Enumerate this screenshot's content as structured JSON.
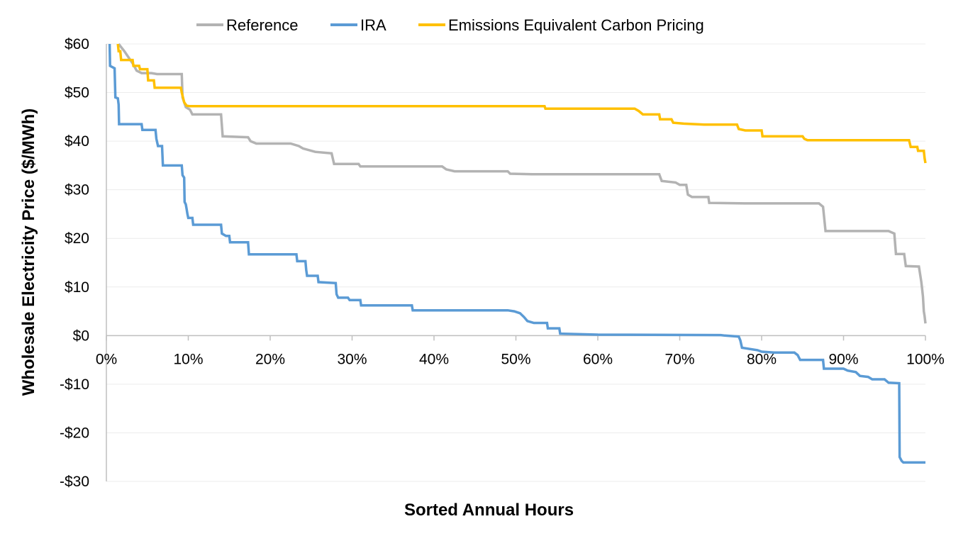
{
  "chart_data": {
    "type": "line",
    "title": "",
    "xlabel": "Sorted Annual Hours",
    "ylabel": "Wholesale Electricity Price ($/MWh)",
    "xlim": [
      0,
      100
    ],
    "ylim": [
      -30,
      60
    ],
    "x_ticks": [
      0,
      10,
      20,
      30,
      40,
      50,
      60,
      70,
      80,
      90,
      100
    ],
    "x_tick_labels": [
      "0%",
      "10%",
      "20%",
      "30%",
      "40%",
      "50%",
      "60%",
      "70%",
      "80%",
      "90%",
      "100%"
    ],
    "y_ticks": [
      60,
      50,
      40,
      30,
      20,
      10,
      0,
      -10,
      -20,
      -30
    ],
    "y_tick_labels": [
      "$60",
      "$50",
      "$40",
      "$30",
      "$20",
      "$10",
      "$0",
      "-$10",
      "-$20",
      "-$30"
    ],
    "grid": true,
    "legend_position": "top",
    "series": [
      {
        "name": "Reference",
        "color": "#b3b3b3",
        "points": [
          [
            1.5,
            60
          ],
          [
            2.2,
            58.5
          ],
          [
            3.2,
            56
          ],
          [
            3.7,
            54.5
          ],
          [
            4.3,
            54
          ],
          [
            5.5,
            54
          ],
          [
            6.2,
            53.8
          ],
          [
            9.2,
            53.8
          ],
          [
            9.3,
            49
          ],
          [
            9.7,
            47
          ],
          [
            10.2,
            46.5
          ],
          [
            10.5,
            45.5
          ],
          [
            14,
            45.5
          ],
          [
            14.2,
            41
          ],
          [
            17.3,
            40.8
          ],
          [
            17.6,
            40
          ],
          [
            18.3,
            39.5
          ],
          [
            22.5,
            39.5
          ],
          [
            23.5,
            39
          ],
          [
            24,
            38.5
          ],
          [
            25.5,
            37.8
          ],
          [
            27.5,
            37.5
          ],
          [
            27.8,
            35.3
          ],
          [
            30.8,
            35.3
          ],
          [
            31,
            34.8
          ],
          [
            37.5,
            34.8
          ],
          [
            41,
            34.8
          ],
          [
            41.5,
            34.2
          ],
          [
            42.5,
            33.8
          ],
          [
            49,
            33.8
          ],
          [
            49.3,
            33.3
          ],
          [
            52,
            33.2
          ],
          [
            67.5,
            33.2
          ],
          [
            67.8,
            31.8
          ],
          [
            69.5,
            31.5
          ],
          [
            70,
            31
          ],
          [
            70.8,
            31
          ],
          [
            71,
            29
          ],
          [
            71.5,
            28.5
          ],
          [
            73.5,
            28.5
          ],
          [
            73.6,
            27.3
          ],
          [
            78,
            27.2
          ],
          [
            87,
            27.2
          ],
          [
            87.5,
            26.5
          ],
          [
            87.8,
            21.5
          ],
          [
            95.5,
            21.5
          ],
          [
            96.2,
            21
          ],
          [
            96.4,
            16.8
          ],
          [
            97.4,
            16.8
          ],
          [
            97.6,
            14.3
          ],
          [
            99.2,
            14.2
          ],
          [
            99.5,
            11
          ],
          [
            99.6,
            9.5
          ],
          [
            99.7,
            8
          ],
          [
            99.8,
            5
          ],
          [
            99.9,
            4
          ],
          [
            100,
            2.5
          ]
        ]
      },
      {
        "name": "IRA",
        "color": "#5b9bd5",
        "points": [
          [
            0.4,
            60
          ],
          [
            0.45,
            55.5
          ],
          [
            1,
            55
          ],
          [
            1.1,
            49
          ],
          [
            1.4,
            48.8
          ],
          [
            1.5,
            47.5
          ],
          [
            1.55,
            43.5
          ],
          [
            4.3,
            43.5
          ],
          [
            4.4,
            42.3
          ],
          [
            6,
            42.3
          ],
          [
            6.1,
            40.5
          ],
          [
            6.3,
            39
          ],
          [
            6.8,
            39
          ],
          [
            6.9,
            35
          ],
          [
            9.2,
            35
          ],
          [
            9.3,
            33
          ],
          [
            9.5,
            32.5
          ],
          [
            9.55,
            27.5
          ],
          [
            9.7,
            27
          ],
          [
            9.8,
            26
          ],
          [
            9.9,
            25
          ],
          [
            10,
            24.2
          ],
          [
            10.5,
            24.2
          ],
          [
            10.6,
            22.8
          ],
          [
            14,
            22.8
          ],
          [
            14.1,
            21
          ],
          [
            14.6,
            20.5
          ],
          [
            15,
            20.5
          ],
          [
            15.1,
            19.2
          ],
          [
            17.3,
            19.2
          ],
          [
            17.4,
            16.7
          ],
          [
            23.2,
            16.7
          ],
          [
            23.3,
            15.3
          ],
          [
            24.3,
            15.3
          ],
          [
            24.4,
            13.5
          ],
          [
            24.5,
            12.3
          ],
          [
            25.8,
            12.3
          ],
          [
            25.9,
            11
          ],
          [
            28,
            10.8
          ],
          [
            28.1,
            8.5
          ],
          [
            28.3,
            7.8
          ],
          [
            29.5,
            7.8
          ],
          [
            29.7,
            7.3
          ],
          [
            31,
            7.3
          ],
          [
            31.1,
            6.2
          ],
          [
            37.3,
            6.2
          ],
          [
            37.4,
            5.2
          ],
          [
            49,
            5.2
          ],
          [
            49.8,
            5
          ],
          [
            50.5,
            4.6
          ],
          [
            51,
            3.8
          ],
          [
            51.4,
            3
          ],
          [
            52.2,
            2.6
          ],
          [
            53.8,
            2.6
          ],
          [
            53.9,
            1.5
          ],
          [
            55.3,
            1.5
          ],
          [
            55.4,
            0.4
          ],
          [
            60,
            0.2
          ],
          [
            75,
            0.1
          ],
          [
            75.5,
            0
          ],
          [
            77.2,
            -0.2
          ],
          [
            77.4,
            -1
          ],
          [
            77.6,
            -2.5
          ],
          [
            79.5,
            -3
          ],
          [
            80,
            -3.3
          ],
          [
            81.5,
            -3.5
          ],
          [
            84,
            -3.5
          ],
          [
            84.4,
            -4
          ],
          [
            84.7,
            -5
          ],
          [
            87.5,
            -5
          ],
          [
            87.6,
            -6.8
          ],
          [
            90,
            -6.8
          ],
          [
            90.5,
            -7.2
          ],
          [
            91.5,
            -7.5
          ],
          [
            92,
            -8.3
          ],
          [
            93,
            -8.5
          ],
          [
            93.5,
            -9
          ],
          [
            95,
            -9
          ],
          [
            95.5,
            -9.7
          ],
          [
            96.8,
            -9.8
          ],
          [
            96.85,
            -25
          ],
          [
            97.1,
            -25.8
          ],
          [
            97.3,
            -26.1
          ],
          [
            100,
            -26.1
          ]
        ]
      },
      {
        "name": "Emissions Equivalent Carbon Pricing",
        "color": "#ffc000",
        "points": [
          [
            1.4,
            60
          ],
          [
            1.5,
            58.5
          ],
          [
            1.7,
            58.5
          ],
          [
            1.8,
            56.7
          ],
          [
            3.2,
            56.7
          ],
          [
            3.3,
            55.5
          ],
          [
            4,
            55.5
          ],
          [
            4.1,
            54.8
          ],
          [
            5,
            54.8
          ],
          [
            5.1,
            52.5
          ],
          [
            5.8,
            52.5
          ],
          [
            5.9,
            51
          ],
          [
            9.1,
            51
          ],
          [
            9.2,
            50
          ],
          [
            9.5,
            48
          ],
          [
            9.8,
            47.3
          ],
          [
            10.2,
            47.2
          ],
          [
            53.5,
            47.2
          ],
          [
            53.6,
            46.7
          ],
          [
            64.5,
            46.7
          ],
          [
            65,
            46.2
          ],
          [
            65.5,
            45.5
          ],
          [
            67.5,
            45.5
          ],
          [
            67.6,
            44.5
          ],
          [
            69,
            44.5
          ],
          [
            69.2,
            43.8
          ],
          [
            70.5,
            43.6
          ],
          [
            73,
            43.4
          ],
          [
            77,
            43.4
          ],
          [
            77.2,
            42.5
          ],
          [
            78,
            42.2
          ],
          [
            80,
            42.2
          ],
          [
            80.1,
            41
          ],
          [
            85,
            41
          ],
          [
            85.2,
            40.5
          ],
          [
            85.6,
            40.2
          ],
          [
            98,
            40.2
          ],
          [
            98.2,
            38.8
          ],
          [
            99,
            38.8
          ],
          [
            99.1,
            38
          ],
          [
            99.8,
            38
          ],
          [
            99.9,
            36.5
          ],
          [
            100,
            35.5
          ]
        ]
      }
    ]
  }
}
